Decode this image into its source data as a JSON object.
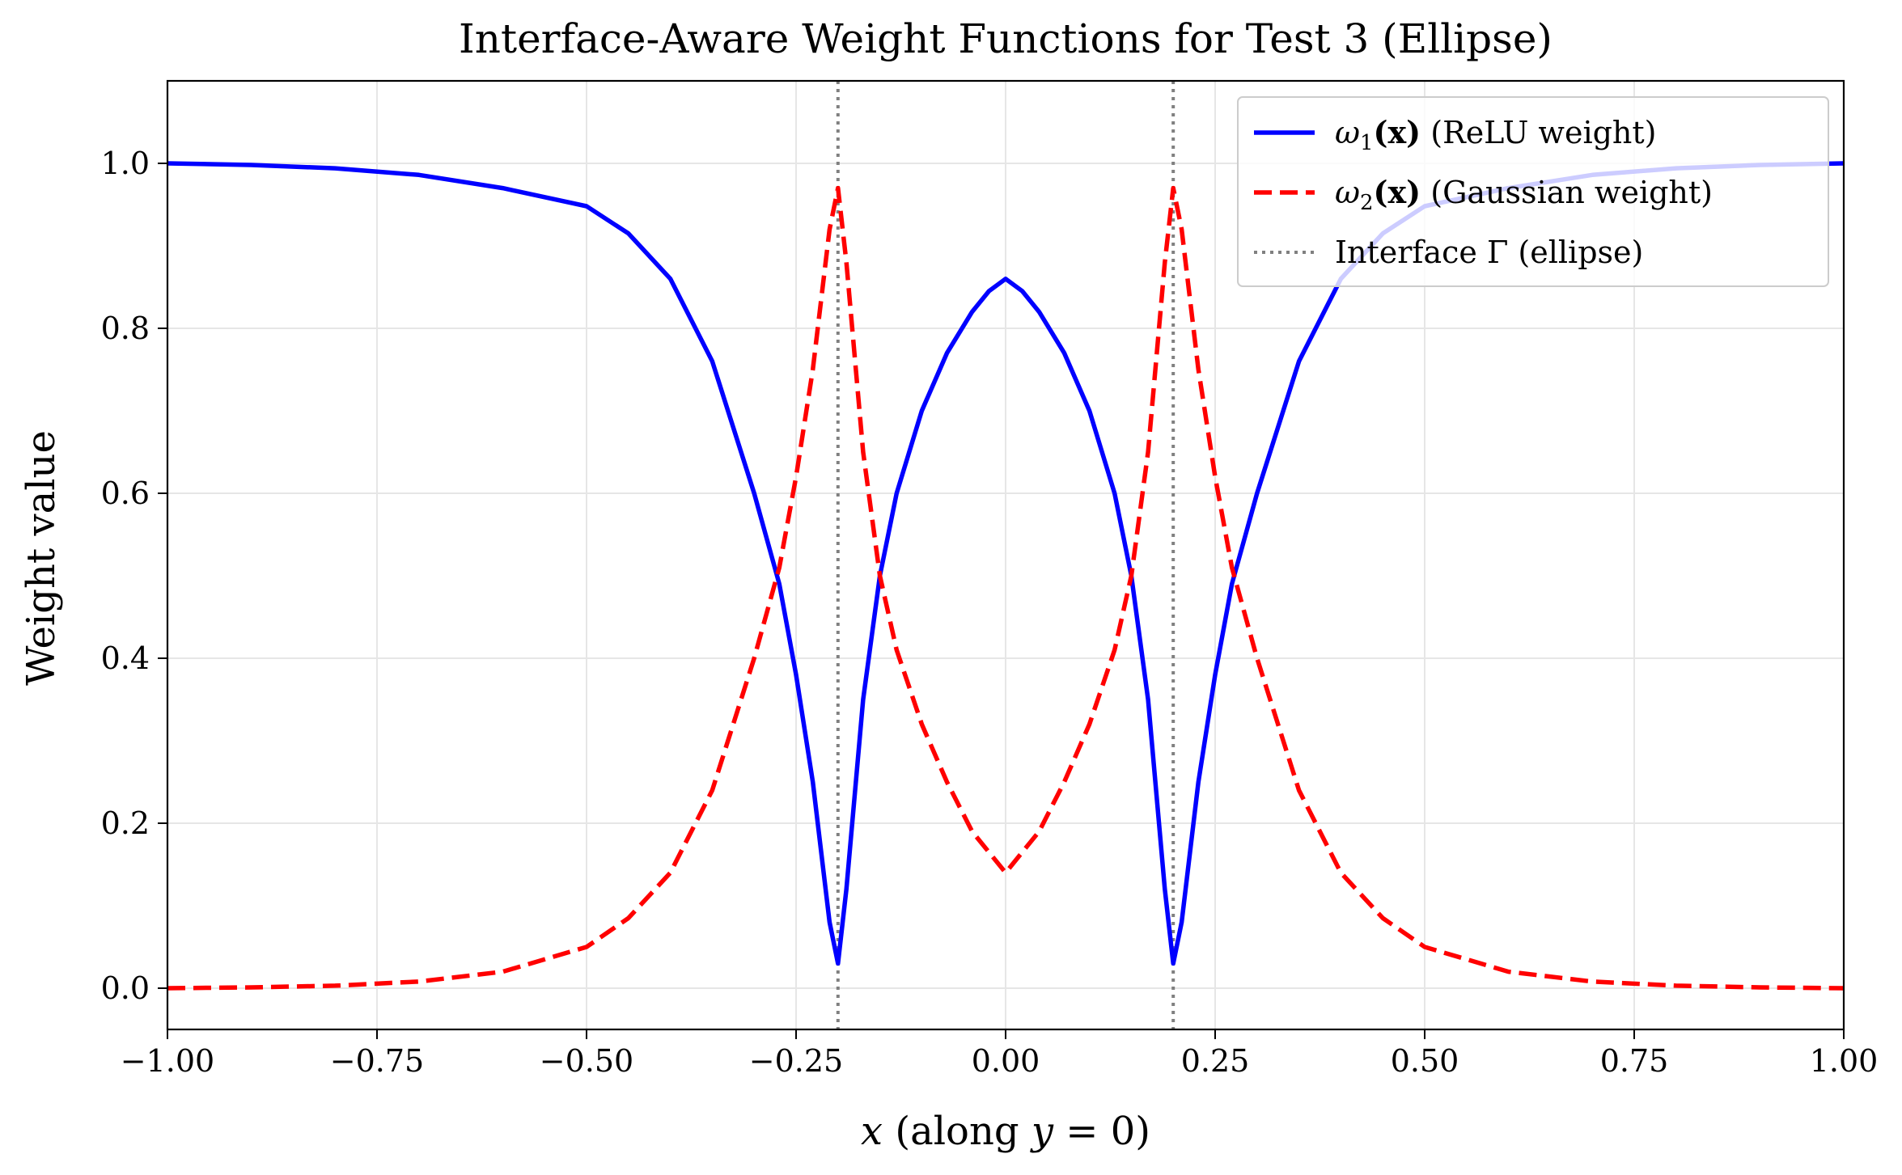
{
  "chart_data": {
    "type": "line",
    "title": "Interface-Aware Weight Functions for Test 3 (Ellipse)",
    "xlabel": "x (along y = 0)",
    "ylabel": "Weight value",
    "xlim": [
      -1.0,
      1.0
    ],
    "ylim": [
      -0.05,
      1.1
    ],
    "grid": true,
    "legend_position": "top-right",
    "x_ticks": [
      {
        "value": -1.0,
        "label": "−1.00"
      },
      {
        "value": -0.75,
        "label": "−0.75"
      },
      {
        "value": -0.5,
        "label": "−0.50"
      },
      {
        "value": -0.25,
        "label": "−0.25"
      },
      {
        "value": 0.0,
        "label": "0.00"
      },
      {
        "value": 0.25,
        "label": "0.25"
      },
      {
        "value": 0.5,
        "label": "0.50"
      },
      {
        "value": 0.75,
        "label": "0.75"
      },
      {
        "value": 1.0,
        "label": "1.00"
      }
    ],
    "y_ticks": [
      {
        "value": 0.0,
        "label": "0.0"
      },
      {
        "value": 0.2,
        "label": "0.2"
      },
      {
        "value": 0.4,
        "label": "0.4"
      },
      {
        "value": 0.6,
        "label": "0.6"
      },
      {
        "value": 0.8,
        "label": "0.8"
      },
      {
        "value": 1.0,
        "label": "1.0"
      }
    ],
    "series": [
      {
        "name": "ω1(x) (ReLU weight)",
        "symbol": "ω",
        "subscript": "1",
        "arg": "(x)",
        "desc": " (ReLU weight)",
        "color": "#0000ff",
        "style": "solid",
        "x": [
          -1.0,
          -0.9,
          -0.8,
          -0.7,
          -0.6,
          -0.5,
          -0.45,
          -0.4,
          -0.35,
          -0.3,
          -0.27,
          -0.25,
          -0.23,
          -0.21,
          -0.2,
          -0.19,
          -0.17,
          -0.15,
          -0.13,
          -0.1,
          -0.07,
          -0.04,
          -0.02,
          0.0,
          0.02,
          0.04,
          0.07,
          0.1,
          0.13,
          0.15,
          0.17,
          0.19,
          0.2,
          0.21,
          0.23,
          0.25,
          0.27,
          0.3,
          0.35,
          0.4,
          0.45,
          0.5,
          0.6,
          0.7,
          0.8,
          0.9,
          1.0
        ],
        "y": [
          1.0,
          0.998,
          0.994,
          0.986,
          0.97,
          0.948,
          0.915,
          0.86,
          0.76,
          0.6,
          0.49,
          0.38,
          0.25,
          0.08,
          0.03,
          0.12,
          0.35,
          0.5,
          0.6,
          0.7,
          0.77,
          0.82,
          0.845,
          0.86,
          0.845,
          0.82,
          0.77,
          0.7,
          0.6,
          0.5,
          0.35,
          0.12,
          0.03,
          0.08,
          0.25,
          0.38,
          0.49,
          0.6,
          0.76,
          0.86,
          0.915,
          0.948,
          0.97,
          0.986,
          0.994,
          0.998,
          1.0
        ]
      },
      {
        "name": "ω2(x) (Gaussian weight)",
        "symbol": "ω",
        "subscript": "2",
        "arg": "(x)",
        "desc": " (Gaussian weight)",
        "color": "#ff0000",
        "style": "dashed",
        "x": [
          -1.0,
          -0.9,
          -0.8,
          -0.7,
          -0.6,
          -0.5,
          -0.45,
          -0.4,
          -0.35,
          -0.3,
          -0.27,
          -0.25,
          -0.23,
          -0.21,
          -0.2,
          -0.19,
          -0.17,
          -0.15,
          -0.13,
          -0.1,
          -0.07,
          -0.04,
          -0.02,
          0.0,
          0.02,
          0.04,
          0.07,
          0.1,
          0.13,
          0.15,
          0.17,
          0.19,
          0.2,
          0.21,
          0.23,
          0.25,
          0.27,
          0.3,
          0.35,
          0.4,
          0.45,
          0.5,
          0.6,
          0.7,
          0.8,
          0.9,
          1.0
        ],
        "y": [
          0.0,
          0.001,
          0.003,
          0.008,
          0.02,
          0.05,
          0.085,
          0.14,
          0.24,
          0.4,
          0.51,
          0.62,
          0.75,
          0.92,
          0.97,
          0.88,
          0.65,
          0.5,
          0.41,
          0.32,
          0.25,
          0.19,
          0.165,
          0.14,
          0.165,
          0.19,
          0.25,
          0.32,
          0.41,
          0.5,
          0.65,
          0.88,
          0.97,
          0.92,
          0.75,
          0.62,
          0.51,
          0.4,
          0.24,
          0.14,
          0.085,
          0.05,
          0.02,
          0.008,
          0.003,
          0.001,
          0.0
        ]
      }
    ],
    "interface": {
      "name": "Interface Γ (ellipse)",
      "text": "Interface Γ (ellipse)",
      "color": "#808080",
      "style": "dotted",
      "x_positions": [
        -0.2,
        0.2
      ]
    }
  }
}
